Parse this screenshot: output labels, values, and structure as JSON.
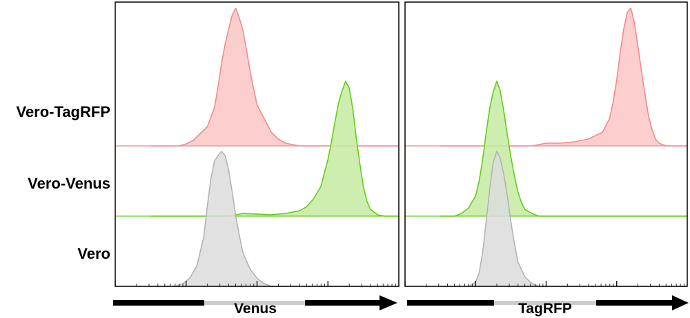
{
  "chart_data": {
    "type": "area",
    "title": "",
    "description_rows": [
      "Vero-TagRFP",
      "Vero-Venus",
      "Vero"
    ],
    "row_labels": [
      "Vero-TagRFP",
      "Vero-Venus",
      "Vero"
    ],
    "scale": "log",
    "xlim_log10": [
      0,
      4
    ],
    "ylim": [
      0,
      1
    ],
    "grid": false,
    "legend": "none",
    "colors": {
      "Vero-TagRFP": {
        "stroke": "#f08b8b",
        "fill": "#fcc6c6"
      },
      "Vero-Venus": {
        "stroke": "#66cc1a",
        "fill": "#c4eba0"
      },
      "Vero": {
        "stroke": "#b3b3b3",
        "fill": "#dcdcdc"
      },
      "axis_bar_dark": "#000000",
      "axis_bar_light": "#cccccc"
    },
    "panels": [
      {
        "xlabel": "Venus",
        "series": [
          {
            "name": "Vero-TagRFP",
            "x": [
              0.5,
              0.9,
              1.0,
              1.1,
              1.2,
              1.3,
              1.4,
              1.45,
              1.5,
              1.55,
              1.6,
              1.65,
              1.7,
              1.75,
              1.8,
              1.85,
              1.9,
              1.95,
              2.0,
              2.1,
              2.2,
              2.3,
              2.4,
              2.6,
              3.0,
              4.0
            ],
            "values": [
              0.0,
              0.0,
              0.015,
              0.04,
              0.09,
              0.14,
              0.28,
              0.43,
              0.6,
              0.74,
              0.85,
              0.95,
              1.0,
              0.93,
              0.84,
              0.7,
              0.55,
              0.42,
              0.3,
              0.2,
              0.1,
              0.05,
              0.02,
              0.0,
              0.0,
              0.0
            ]
          },
          {
            "name": "Vero-Venus",
            "x": [
              0.5,
              1.2,
              1.6,
              1.8,
              2.2,
              2.4,
              2.6,
              2.7,
              2.8,
              2.9,
              2.95,
              3.0,
              3.05,
              3.1,
              3.15,
              3.2,
              3.25,
              3.3,
              3.35,
              3.4,
              3.45,
              3.5,
              3.55,
              3.6,
              3.7,
              3.8,
              4.0
            ],
            "values": [
              0.0,
              0.0,
              0.0,
              0.02,
              0.01,
              0.02,
              0.04,
              0.07,
              0.13,
              0.22,
              0.32,
              0.42,
              0.55,
              0.7,
              0.84,
              0.93,
              1.0,
              0.95,
              0.8,
              0.58,
              0.39,
              0.22,
              0.11,
              0.05,
              0.01,
              0.0,
              0.0
            ]
          },
          {
            "name": "Vero",
            "x": [
              0.5,
              0.85,
              0.95,
              1.05,
              1.15,
              1.25,
              1.3,
              1.35,
              1.4,
              1.45,
              1.5,
              1.55,
              1.6,
              1.65,
              1.7,
              1.75,
              1.8,
              1.9,
              2.0,
              2.1,
              2.2,
              4.0
            ],
            "values": [
              0.0,
              0.0,
              0.02,
              0.06,
              0.15,
              0.37,
              0.6,
              0.8,
              0.93,
              0.97,
              1.0,
              0.97,
              0.86,
              0.7,
              0.52,
              0.38,
              0.25,
              0.13,
              0.06,
              0.02,
              0.0,
              0.0
            ]
          }
        ]
      },
      {
        "xlabel": "TagRFP",
        "series": [
          {
            "name": "Vero-TagRFP",
            "x": [
              0.5,
              1.8,
              2.0,
              2.2,
              2.4,
              2.6,
              2.8,
              2.9,
              2.95,
              3.0,
              3.05,
              3.1,
              3.15,
              3.2,
              3.25,
              3.3,
              3.35,
              3.4,
              3.45,
              3.5,
              3.55,
              3.6,
              3.7,
              4.0
            ],
            "values": [
              0.0,
              0.0,
              0.02,
              0.02,
              0.03,
              0.05,
              0.1,
              0.2,
              0.32,
              0.48,
              0.68,
              0.85,
              0.97,
              1.0,
              0.9,
              0.73,
              0.55,
              0.38,
              0.22,
              0.12,
              0.05,
              0.02,
              0.0,
              0.0
            ]
          },
          {
            "name": "Vero-Venus",
            "x": [
              0.5,
              0.7,
              0.8,
              0.9,
              1.0,
              1.05,
              1.1,
              1.15,
              1.2,
              1.25,
              1.3,
              1.35,
              1.4,
              1.45,
              1.5,
              1.55,
              1.6,
              1.65,
              1.7,
              1.8,
              1.9,
              2.0,
              4.0
            ],
            "values": [
              0.0,
              0.0,
              0.02,
              0.06,
              0.15,
              0.26,
              0.42,
              0.62,
              0.8,
              0.92,
              1.0,
              0.93,
              0.78,
              0.6,
              0.44,
              0.3,
              0.18,
              0.1,
              0.05,
              0.02,
              0.0,
              0.0,
              0.0
            ]
          },
          {
            "name": "Vero",
            "x": [
              0.5,
              0.9,
              1.0,
              1.05,
              1.1,
              1.15,
              1.2,
              1.25,
              1.3,
              1.35,
              1.4,
              1.45,
              1.5,
              1.55,
              1.6,
              1.7,
              1.8,
              1.9,
              4.0
            ],
            "values": [
              0.0,
              0.0,
              0.03,
              0.1,
              0.25,
              0.48,
              0.72,
              0.92,
              1.0,
              0.95,
              0.83,
              0.67,
              0.48,
              0.32,
              0.18,
              0.07,
              0.02,
              0.0,
              0.0
            ]
          }
        ]
      }
    ]
  }
}
